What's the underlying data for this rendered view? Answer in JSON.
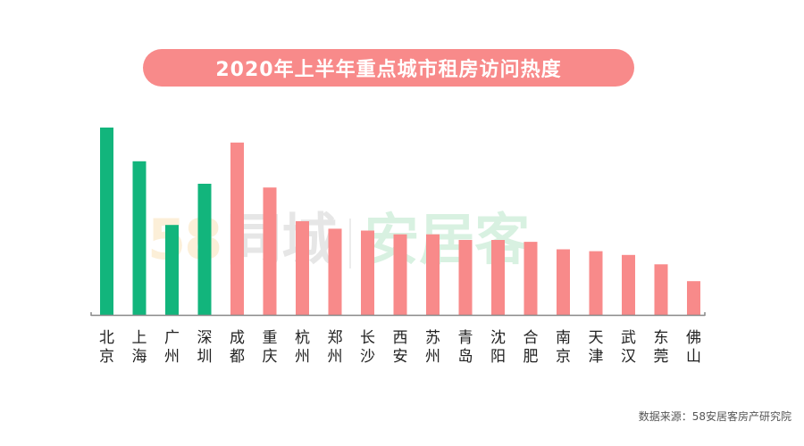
{
  "chart_data": {
    "type": "bar",
    "title": "2020年上半年重点城市租房访问热度",
    "categories": [
      "北京",
      "上海",
      "广州",
      "深圳",
      "成都",
      "重庆",
      "杭州",
      "郑州",
      "长沙",
      "西安",
      "苏州",
      "青岛",
      "沈阳",
      "合肥",
      "南京",
      "天津",
      "武汉",
      "东莞",
      "佛山"
    ],
    "values": [
      100,
      82,
      48,
      70,
      92,
      68,
      50,
      46,
      45,
      43,
      43,
      40,
      40,
      39,
      35,
      34,
      32,
      27,
      18
    ],
    "highlight_count": 4,
    "highlight_color": "#12b57c",
    "bar_color": "#f88a8a",
    "xlabel": "",
    "ylabel": "",
    "ylim": [
      0,
      100
    ],
    "grid": false,
    "legend": "none"
  },
  "watermark": {
    "brand_58": "58",
    "brand_tongcheng": "同城",
    "brand_anjuke": "安居客"
  },
  "source": "数据来源：58安居客房产研究院"
}
